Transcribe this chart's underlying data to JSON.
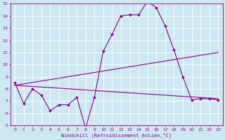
{
  "xlabel": "Windchill (Refroidissement éolien,°C)",
  "bg_color": "#cde8f0",
  "line_color": "#880088",
  "grid_color": "#ffffff",
  "xlim": [
    -0.5,
    23.5
  ],
  "ylim": [
    5,
    15
  ],
  "yticks": [
    5,
    6,
    7,
    8,
    9,
    10,
    11,
    12,
    13,
    14,
    15
  ],
  "xticks": [
    0,
    1,
    2,
    3,
    4,
    5,
    6,
    7,
    8,
    9,
    10,
    11,
    12,
    13,
    14,
    15,
    16,
    17,
    18,
    19,
    20,
    21,
    22,
    23
  ],
  "line1_x": [
    0,
    1,
    2,
    3,
    4,
    5,
    6,
    7,
    8,
    9,
    10,
    11,
    12,
    13,
    14,
    15,
    16,
    17,
    18,
    19,
    20,
    21,
    22,
    23
  ],
  "line1_y": [
    8.5,
    6.8,
    8.0,
    7.5,
    6.2,
    6.7,
    6.7,
    7.3,
    4.8,
    7.3,
    11.1,
    12.5,
    14.0,
    14.1,
    14.1,
    15.2,
    14.7,
    13.2,
    11.2,
    9.0,
    7.1,
    7.2,
    7.2,
    7.1
  ],
  "line2_x": [
    0,
    23
  ],
  "line2_y": [
    8.3,
    11.0
  ],
  "line3_x": [
    0,
    23
  ],
  "line3_y": [
    8.3,
    7.2
  ],
  "markersize": 2.0,
  "linewidth": 0.8,
  "tick_labelsize": 4.5,
  "xlabel_fontsize": 5.0
}
